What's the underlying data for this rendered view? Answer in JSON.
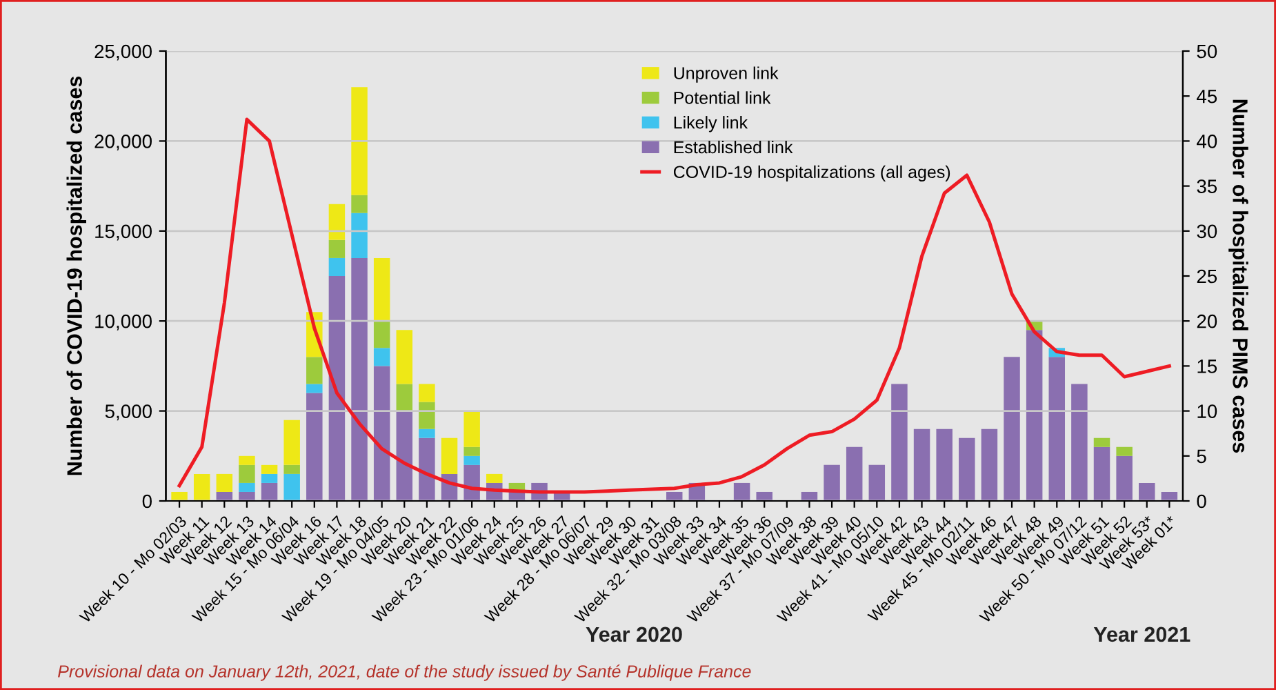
{
  "chart_data": {
    "type": "bar",
    "stacked": true,
    "categories": [
      "Week 10 - Mo 02/03",
      "Week 11",
      "Week 12",
      "Week 13",
      "Week 14",
      "Week 15 - Mo 06/04",
      "Week 16",
      "Week 17",
      "Week 18",
      "Week 19 - Mo 04/05",
      "Week 20",
      "Week 21",
      "Week 22",
      "Week 23 - Mo 01/06",
      "Week 24",
      "Week 25",
      "Week 26",
      "Week 27",
      "Week 28 - Mo 06/07",
      "Week 29",
      "Week 30",
      "Week 31",
      "Week 32 - Mo 03/08",
      "Week 33",
      "Week 34",
      "Week 35",
      "Week 36",
      "Week 37 - Mo 07/09",
      "Week 38",
      "Week 39",
      "Week 40",
      "Week 41 - Mo 05/10",
      "Week 42",
      "Week 43",
      "Week 44",
      "Week 45 - Mo 02/11",
      "Week 46",
      "Week 47",
      "Week 48",
      "Week 49",
      "Week 50 - Mo 07/12",
      "Week 51",
      "Week 52",
      "Week 53*",
      "Week 01*"
    ],
    "series": [
      {
        "name": "Established link",
        "color": "#8a6fb0",
        "axis": "y2",
        "values": [
          0,
          0,
          1,
          1,
          2,
          0,
          12,
          25,
          27,
          15,
          10,
          7,
          3,
          4,
          2,
          1,
          2,
          1,
          0,
          0,
          0,
          0,
          1,
          2,
          0,
          2,
          1,
          0,
          1,
          4,
          6,
          4,
          13,
          8,
          8,
          7,
          8,
          16,
          19,
          16,
          13,
          6,
          5,
          2,
          1
        ]
      },
      {
        "name": "Likely link",
        "color": "#3fc3ee",
        "axis": "y2",
        "values": [
          0,
          0,
          0,
          1,
          1,
          3,
          1,
          2,
          5,
          2,
          0,
          1,
          0,
          1,
          0,
          0,
          0,
          0,
          0,
          0,
          0,
          0,
          0,
          0,
          0,
          0,
          0,
          0,
          0,
          0,
          0,
          0,
          0,
          0,
          0,
          0,
          0,
          0,
          0,
          1,
          0,
          0,
          0,
          0,
          0
        ]
      },
      {
        "name": "Potential link",
        "color": "#9dcb3c",
        "axis": "y2",
        "values": [
          0,
          0,
          0,
          2,
          0,
          1,
          3,
          2,
          2,
          3,
          3,
          3,
          0,
          1,
          0,
          1,
          0,
          0,
          0,
          0,
          0,
          0,
          0,
          0,
          0,
          0,
          0,
          0,
          0,
          0,
          0,
          0,
          0,
          0,
          0,
          0,
          0,
          0,
          1,
          0,
          0,
          1,
          1,
          0,
          0
        ]
      },
      {
        "name": "Unproven link",
        "color": "#eee816",
        "axis": "y2",
        "values": [
          1,
          3,
          2,
          1,
          1,
          5,
          5,
          4,
          12,
          7,
          6,
          2,
          4,
          4,
          1,
          0,
          0,
          0,
          0,
          0,
          0,
          0,
          0,
          0,
          0,
          0,
          0,
          0,
          0,
          0,
          0,
          0,
          0,
          0,
          0,
          0,
          0,
          0,
          0,
          0,
          0,
          0,
          0,
          0,
          0
        ]
      },
      {
        "name": "COVID-19 hospitalizations (all ages)",
        "type": "line",
        "color": "#ee1c24",
        "axis": "y",
        "values": [
          850,
          3000,
          11000,
          21200,
          20000,
          14800,
          9600,
          6000,
          4300,
          2900,
          2100,
          1500,
          1000,
          700,
          600,
          550,
          500,
          500,
          500,
          550,
          600,
          650,
          700,
          900,
          1000,
          1350,
          2000,
          2900,
          3650,
          3850,
          4550,
          5600,
          8500,
          13600,
          17100,
          18100,
          15500,
          11500,
          9400,
          8300,
          8100,
          8100,
          6900,
          7200,
          7500
        ]
      }
    ],
    "ylabel": "Number of COVID-19 hospitalized cases",
    "y2label": "Number of hospitalized PIMS cases",
    "ylim": [
      0,
      25000
    ],
    "yticks": [
      {
        "value": 0,
        "label": "0"
      },
      {
        "value": 5000,
        "label": "5,000"
      },
      {
        "value": 10000,
        "label": "10,000"
      },
      {
        "value": 15000,
        "label": "15,000"
      },
      {
        "value": 20000,
        "label": "20,000"
      },
      {
        "value": 25000,
        "label": "25,000"
      }
    ],
    "y2lim": [
      0,
      50
    ],
    "y2ticks": [
      0,
      5,
      10,
      15,
      20,
      25,
      30,
      35,
      40,
      45,
      50
    ],
    "grid": "y",
    "legend": "top",
    "line_style": "solid",
    "marker": "none",
    "annotations": [
      "Year 2020",
      "Year 2021",
      "Provisional data on January 12th, 2021, date of the study issued by Santé Publique France"
    ]
  }
}
